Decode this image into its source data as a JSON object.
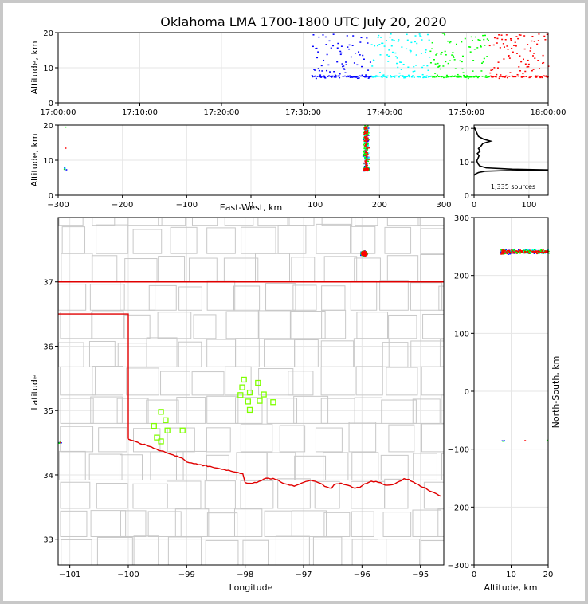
{
  "chart_data": {
    "type": "scatter",
    "title": "Oklahoma LMA 1700-1800 UTC July 20, 2020",
    "source_count_label": "1,335 sources",
    "colors": {
      "early": "#0000ff",
      "mid": "#00ffff",
      "mid2": "#00ff00",
      "late": "#ff0000",
      "stations": "#7fff00",
      "border": "#ff0000",
      "counties": "#c0c0c0"
    },
    "time_panel": {
      "ylabel": "Altitude, km",
      "xlim_minutes": [
        0,
        60
      ],
      "ylim": [
        0,
        20
      ],
      "xticks": [
        "17:00:00",
        "17:10:00",
        "17:20:00",
        "17:30:00",
        "17:40:00",
        "17:50:00",
        "18:00:00"
      ],
      "yticks": [
        "0",
        "10",
        "20"
      ]
    },
    "ew_panel": {
      "xlabel": "East-West, km",
      "ylabel": "Altitude, km",
      "xlim": [
        -300,
        300
      ],
      "ylim": [
        0,
        20
      ],
      "xticks": [
        "−300",
        "−200",
        "−100",
        "0",
        "100",
        "200",
        "300"
      ],
      "yticks": [
        "0",
        "10",
        "20"
      ]
    },
    "histogram_panel": {
      "xlim": [
        0,
        135
      ],
      "ylim": [
        0,
        21
      ],
      "xticks": [
        "0",
        "100"
      ],
      "yticks": [
        "0",
        "10",
        "20"
      ],
      "profile": [
        [
          0,
          6.0
        ],
        [
          3,
          6.4
        ],
        [
          8,
          6.8
        ],
        [
          20,
          7.2
        ],
        [
          60,
          7.4
        ],
        [
          135,
          7.6
        ],
        [
          70,
          7.8
        ],
        [
          22,
          8.2
        ],
        [
          10,
          8.8
        ],
        [
          7,
          9.5
        ],
        [
          5,
          10.3
        ],
        [
          7,
          11
        ],
        [
          9,
          11.8
        ],
        [
          6,
          12.5
        ],
        [
          11,
          13.2
        ],
        [
          8,
          14
        ],
        [
          13,
          14.8
        ],
        [
          16,
          15.5
        ],
        [
          30,
          16.2
        ],
        [
          17,
          16.8
        ],
        [
          8,
          17.6
        ],
        [
          6,
          18.3
        ],
        [
          4,
          19
        ],
        [
          2,
          19.8
        ],
        [
          0,
          20.5
        ]
      ]
    },
    "map_panel": {
      "xlabel": "Longitude",
      "ylabel": "Latitude",
      "xlim": [
        -101.2,
        -94.6
      ],
      "ylim": [
        32.6,
        38.0
      ],
      "xticks": [
        "−101",
        "−100",
        "−99",
        "−98",
        "−97",
        "−96",
        "−95"
      ],
      "yticks": [
        "33",
        "34",
        "35",
        "36",
        "37"
      ],
      "stations": [
        [
          -98.02,
          35.48
        ],
        [
          -98.05,
          35.36
        ],
        [
          -97.78,
          35.43
        ],
        [
          -97.92,
          35.28
        ],
        [
          -98.08,
          35.24
        ],
        [
          -97.68,
          35.25
        ],
        [
          -97.95,
          35.14
        ],
        [
          -97.75,
          35.15
        ],
        [
          -97.52,
          35.13
        ],
        [
          -97.92,
          35.01
        ],
        [
          -99.44,
          34.98
        ],
        [
          -99.36,
          34.85
        ],
        [
          -99.56,
          34.76
        ],
        [
          -99.33,
          34.69
        ],
        [
          -99.07,
          34.69
        ],
        [
          -99.51,
          34.58
        ],
        [
          -99.44,
          34.52
        ]
      ],
      "storm_center": [
        -95.98,
        37.45
      ]
    },
    "ns_panel": {
      "xlabel": "Altitude, km",
      "ylabel": "North-South, km",
      "xlim": [
        0,
        20
      ],
      "ylim": [
        -300,
        300
      ],
      "xticks": [
        "0",
        "10",
        "20"
      ],
      "yticks": [
        "−300",
        "−200",
        "−100",
        "0",
        "100",
        "200",
        "300"
      ]
    }
  }
}
